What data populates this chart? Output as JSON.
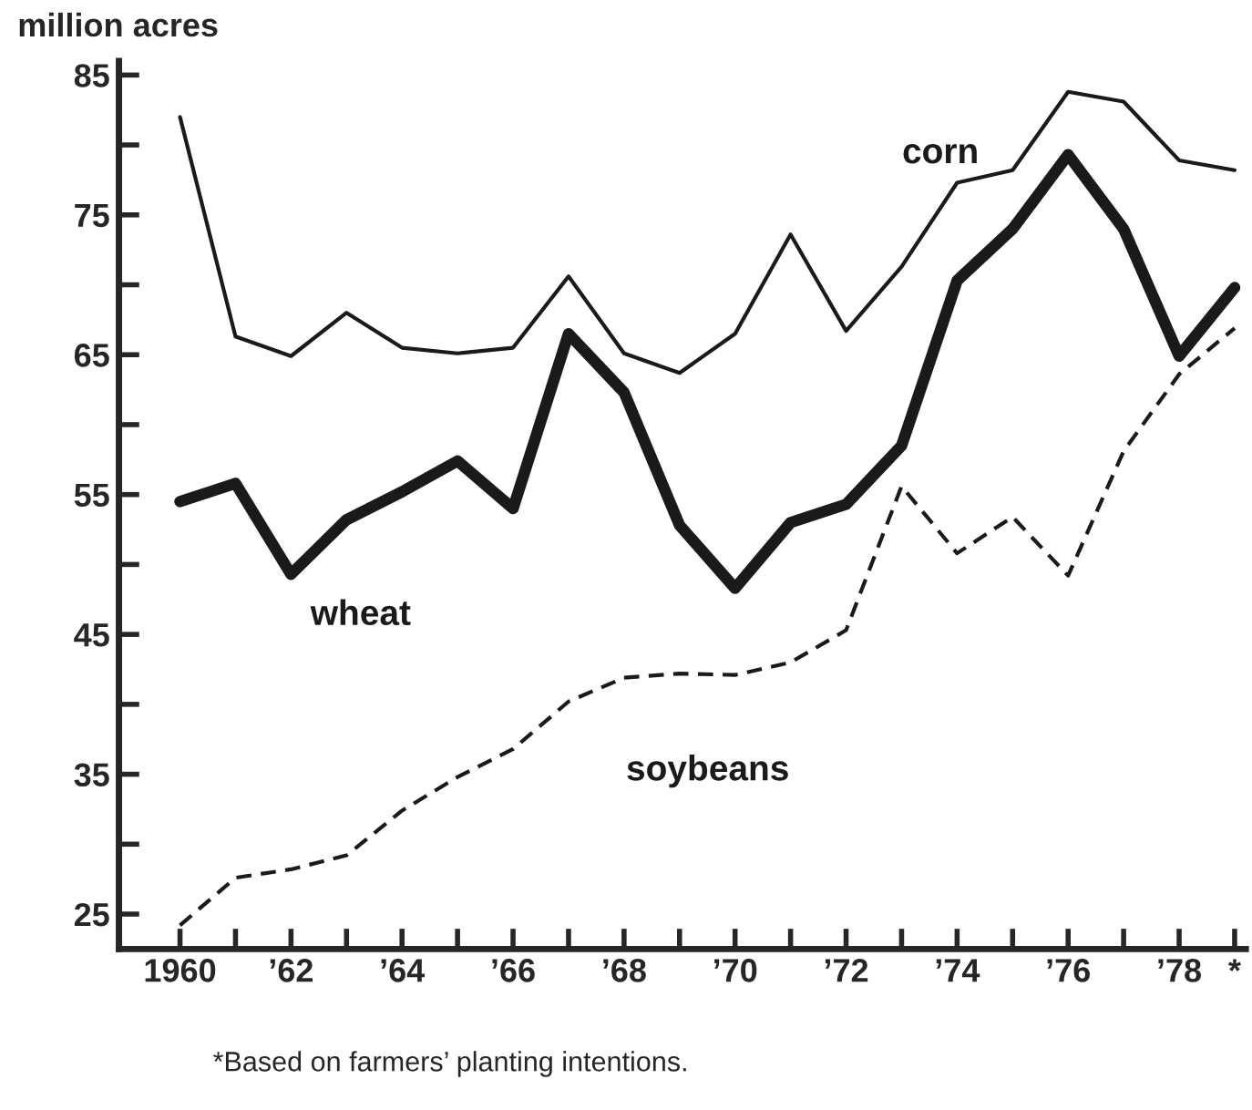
{
  "chart_data": {
    "type": "line",
    "ylabel": "million acres",
    "x": [
      1960,
      1961,
      1962,
      1963,
      1964,
      1965,
      1966,
      1967,
      1968,
      1969,
      1970,
      1971,
      1972,
      1973,
      1974,
      1975,
      1976,
      1977,
      1978,
      1979
    ],
    "series": [
      {
        "name": "corn",
        "color": "#1a1a1a",
        "line_style": "solid",
        "values": [
          82.0,
          66.3,
          64.9,
          68.0,
          65.5,
          65.1,
          65.5,
          70.6,
          65.1,
          63.7,
          66.5,
          73.6,
          66.7,
          71.3,
          77.3,
          78.2,
          83.8,
          83.1,
          78.9,
          78.2
        ]
      },
      {
        "name": "wheat",
        "color": "#1a1a1a",
        "line_style": "solid",
        "values": [
          54.5,
          55.8,
          49.3,
          53.2,
          55.2,
          57.4,
          54.0,
          66.5,
          62.3,
          52.8,
          48.3,
          53.0,
          54.3,
          58.5,
          70.3,
          74.0,
          79.3,
          74.0,
          64.9,
          69.8
        ]
      },
      {
        "name": "soybeans",
        "color": "#1a1a1a",
        "line_style": "dashed",
        "values": [
          24.2,
          27.6,
          28.2,
          29.2,
          32.4,
          34.8,
          36.8,
          40.2,
          41.9,
          42.2,
          42.1,
          43.0,
          45.3,
          55.6,
          50.8,
          53.4,
          49.2,
          58.1,
          63.6,
          66.9
        ]
      }
    ],
    "xlim": [
      1958.9,
      1979.2
    ],
    "xticks": [
      {
        "value": 1960,
        "label": "1960"
      },
      {
        "value": 1961,
        "label": null
      },
      {
        "value": 1962,
        "label": "’62"
      },
      {
        "value": 1963,
        "label": null
      },
      {
        "value": 1964,
        "label": "’64"
      },
      {
        "value": 1965,
        "label": null
      },
      {
        "value": 1966,
        "label": "’66"
      },
      {
        "value": 1967,
        "label": null
      },
      {
        "value": 1968,
        "label": "’68"
      },
      {
        "value": 1969,
        "label": null
      },
      {
        "value": 1970,
        "label": "’70"
      },
      {
        "value": 1971,
        "label": null
      },
      {
        "value": 1972,
        "label": "’72"
      },
      {
        "value": 1973,
        "label": null
      },
      {
        "value": 1974,
        "label": "’74"
      },
      {
        "value": 1975,
        "label": null
      },
      {
        "value": 1976,
        "label": "’76"
      },
      {
        "value": 1977,
        "label": null
      },
      {
        "value": 1978,
        "label": "’78"
      },
      {
        "value": 1979,
        "label": "*"
      }
    ],
    "ylim": [
      22.5,
      86
    ],
    "yticks": [
      25,
      {
        "value": 30,
        "label": null
      },
      35,
      {
        "value": 40,
        "label": null
      },
      45,
      {
        "value": 50,
        "label": null
      },
      55,
      {
        "value": 60,
        "label": null
      },
      65,
      {
        "value": 70,
        "label": null
      },
      75,
      {
        "value": 80,
        "label": null
      },
      85
    ],
    "grid": false,
    "legend": false,
    "marker": "none",
    "annotations": [
      "*Based on farmers’ planting intentions."
    ]
  }
}
